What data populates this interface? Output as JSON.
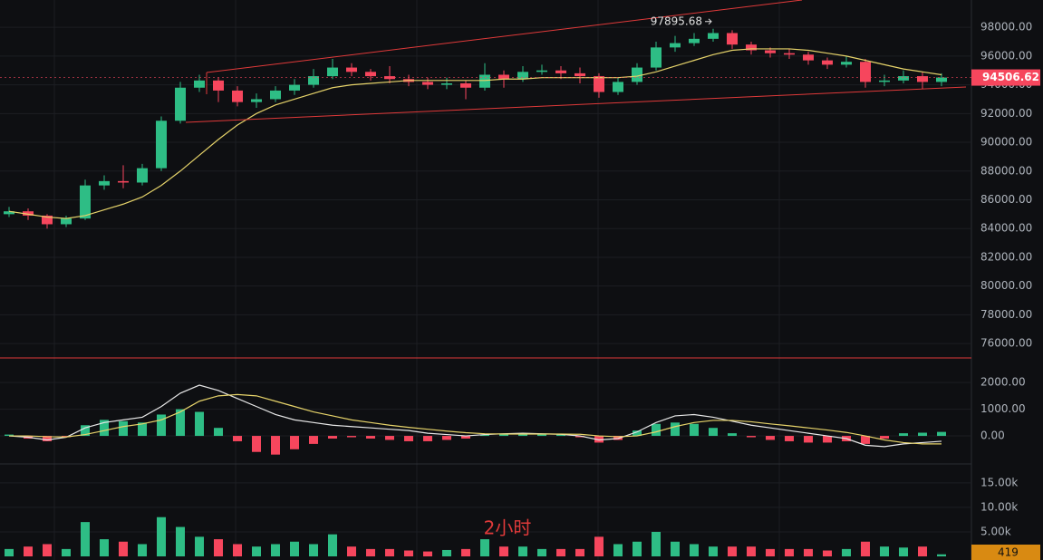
{
  "chart_data": [
    {
      "type": "candlestick",
      "open": [
        85000,
        85200,
        84900,
        84300,
        84700,
        87000,
        87300,
        87200,
        88200,
        91500,
        93800,
        94300,
        93600,
        92800,
        93000,
        93600,
        94000,
        94600,
        95200,
        94900,
        94600,
        94400,
        94200,
        94000,
        94100,
        93800,
        94700,
        94400,
        94900,
        95000,
        94800,
        94600,
        93500,
        94200,
        95200,
        96600,
        96900,
        97200,
        97600,
        96800,
        96400,
        96200,
        96100,
        95700,
        95400,
        95600,
        94200,
        94300,
        94600,
        94200
      ],
      "high": [
        85500,
        85400,
        85000,
        84900,
        87400,
        87700,
        88400,
        88500,
        91800,
        94200,
        94700,
        94500,
        93900,
        93400,
        93900,
        94400,
        95100,
        95800,
        95500,
        95100,
        95300,
        94700,
        94500,
        94500,
        94300,
        95500,
        95000,
        95300,
        95400,
        95300,
        95200,
        94800,
        94500,
        95500,
        97000,
        97400,
        97600,
        97895.68,
        97800,
        97000,
        96600,
        96500,
        96300,
        95900,
        96000,
        95800,
        94700,
        95000,
        94900,
        94800
      ],
      "low": [
        84800,
        84600,
        84000,
        84100,
        84600,
        86700,
        86800,
        87000,
        88000,
        91300,
        93500,
        92800,
        92500,
        92400,
        92800,
        93300,
        93800,
        94400,
        94600,
        94300,
        94100,
        93900,
        93700,
        93700,
        93000,
        93600,
        93800,
        94200,
        94700,
        94400,
        94100,
        93100,
        93300,
        94000,
        95000,
        96300,
        96700,
        97000,
        96500,
        96100,
        95900,
        95800,
        95400,
        95100,
        95200,
        93800,
        93900,
        94100,
        93700,
        93900
      ],
      "close": [
        85200,
        84900,
        84300,
        84700,
        87000,
        87300,
        87200,
        88200,
        91500,
        93800,
        94300,
        93600,
        92800,
        93000,
        93600,
        94000,
        94600,
        95200,
        94900,
        94600,
        94400,
        94200,
        94000,
        94100,
        93800,
        94700,
        94400,
        94900,
        95000,
        94800,
        94600,
        93500,
        94200,
        95200,
        96600,
        96900,
        97200,
        97600,
        96800,
        96400,
        96200,
        96100,
        95700,
        95400,
        95600,
        94200,
        94300,
        94600,
        94200,
        94506.62
      ],
      "up_color": "#2ebd85",
      "down_color": "#f6465d",
      "ma": {
        "color": "#e6d36a",
        "values": [
          85200,
          85000,
          84800,
          84700,
          84900,
          85300,
          85700,
          86200,
          87000,
          88000,
          89100,
          90200,
          91200,
          92000,
          92600,
          93000,
          93400,
          93800,
          94000,
          94100,
          94200,
          94300,
          94300,
          94300,
          94300,
          94300,
          94400,
          94400,
          94500,
          94500,
          94500,
          94500,
          94500,
          94600,
          94900,
          95300,
          95700,
          96100,
          96400,
          96500,
          96500,
          96500,
          96400,
          96200,
          96000,
          95700,
          95400,
          95100,
          94900,
          94700
        ]
      },
      "ylim": [
        75000,
        99900
      ],
      "yticks": [
        {
          "value": 76000,
          "label": "76000.00"
        },
        {
          "value": 78000,
          "label": "78000.00"
        },
        {
          "value": 80000,
          "label": "80000.00"
        },
        {
          "value": 82000,
          "label": "82000.00"
        },
        {
          "value": 84000,
          "label": "84000.00"
        },
        {
          "value": 86000,
          "label": "86000.00"
        },
        {
          "value": 88000,
          "label": "88000.00"
        },
        {
          "value": 90000,
          "label": "90000.00"
        },
        {
          "value": 92000,
          "label": "92000.00"
        },
        {
          "value": 94000,
          "label": "94000.00"
        },
        {
          "value": 96000,
          "label": "96000.00"
        },
        {
          "value": 98000,
          "label": "98000.00"
        }
      ],
      "grid": true
    },
    {
      "type": "macd",
      "values": [
        50,
        -100,
        -200,
        -50,
        400,
        600,
        550,
        500,
        800,
        1000,
        900,
        300,
        -200,
        -600,
        -700,
        -500,
        -300,
        -100,
        -50,
        -100,
        -150,
        -200,
        -200,
        -150,
        -100,
        50,
        80,
        100,
        60,
        50,
        -50,
        -250,
        -150,
        200,
        450,
        500,
        450,
        300,
        100,
        -50,
        -150,
        -200,
        -250,
        -250,
        -200,
        -300,
        -100,
        100,
        120,
        150
      ],
      "dif": {
        "color": "#e8e8e8",
        "values": [
          0,
          -50,
          -150,
          -50,
          300,
          500,
          600,
          700,
          1100,
          1600,
          1900,
          1700,
          1400,
          1100,
          800,
          600,
          500,
          400,
          350,
          300,
          250,
          200,
          100,
          50,
          0,
          50,
          80,
          100,
          80,
          60,
          0,
          -150,
          -100,
          150,
          500,
          750,
          800,
          700,
          550,
          400,
          300,
          200,
          100,
          0,
          -100,
          -350,
          -400,
          -300,
          -250,
          -200
        ]
      },
      "dea": {
        "color": "#e6d36a",
        "values": [
          0,
          0,
          -30,
          -40,
          50,
          200,
          350,
          450,
          600,
          900,
          1300,
          1500,
          1550,
          1500,
          1300,
          1100,
          900,
          750,
          600,
          500,
          400,
          320,
          250,
          180,
          120,
          80,
          70,
          70,
          70,
          70,
          60,
          0,
          -30,
          0,
          150,
          350,
          500,
          580,
          580,
          530,
          450,
          380,
          300,
          220,
          130,
          0,
          -150,
          -250,
          -300,
          -300
        ]
      },
      "ylim": [
        -1050,
        2750
      ],
      "yticks": [
        {
          "value": 0,
          "label": "0.00"
        },
        {
          "value": 1000,
          "label": "1000.00"
        },
        {
          "value": 2000,
          "label": "2000.00"
        }
      ],
      "grid": true
    },
    {
      "type": "volume",
      "label": "2小时",
      "values": [
        1500,
        2000,
        2500,
        1500,
        7000,
        3500,
        3000,
        2500,
        8000,
        6000,
        4000,
        3500,
        2500,
        2000,
        2500,
        3000,
        2500,
        4500,
        2000,
        1500,
        1500,
        1200,
        1000,
        1300,
        1500,
        3500,
        2000,
        2000,
        1500,
        1500,
        1500,
        4000,
        2500,
        3000,
        5000,
        3000,
        2500,
        2000,
        2000,
        2000,
        1500,
        1500,
        1500,
        1200,
        1500,
        3000,
        2000,
        1800,
        2000,
        419
      ],
      "ylim": [
        0,
        18300
      ],
      "yticks": [
        {
          "value": 5000,
          "label": "5.00k"
        },
        {
          "value": 10000,
          "label": "10.00k"
        },
        {
          "value": 15000,
          "label": "15.00k"
        }
      ],
      "grid": true
    }
  ]
}
